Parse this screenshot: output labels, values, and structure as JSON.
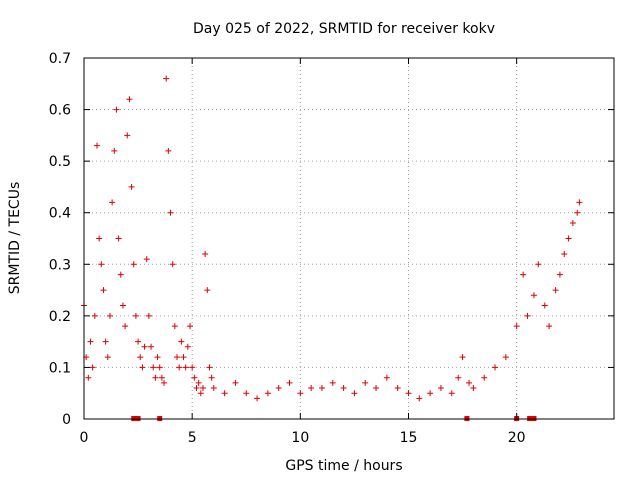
{
  "chart_data": {
    "type": "scatter",
    "title": "Day 025 of 2022, SRMTID for receiver kokv",
    "xlabel": "GPS time / hours",
    "ylabel": "SRMTID / TECUs",
    "xlim": [
      0,
      24.5
    ],
    "ylim": [
      0,
      0.7
    ],
    "xticks": [
      0,
      5,
      10,
      15,
      20
    ],
    "xtick_labels": [
      "0",
      "5",
      "10",
      "15",
      "20"
    ],
    "yticks": [
      0,
      0.1,
      0.2,
      0.3,
      0.4,
      0.5,
      0.6,
      0.7
    ],
    "ytick_labels": [
      "0",
      "0.1",
      "0.2",
      "0.3",
      "0.4",
      "0.5",
      "0.6",
      "0.7"
    ],
    "grid": true,
    "marker": "plus",
    "color": "#e00000",
    "series": [
      {
        "name": "SRMTID",
        "x": [
          0.0,
          0.1,
          0.2,
          0.3,
          0.4,
          0.5,
          0.6,
          0.7,
          0.8,
          0.9,
          1.0,
          1.1,
          1.2,
          1.3,
          1.4,
          1.5,
          1.6,
          1.7,
          1.8,
          1.9,
          2.0,
          2.1,
          2.2,
          2.3,
          2.4,
          2.5,
          2.6,
          2.7,
          2.8,
          2.9,
          3.0,
          3.1,
          3.2,
          3.3,
          3.4,
          3.5,
          3.6,
          3.7,
          3.8,
          3.9,
          4.0,
          4.1,
          4.2,
          4.3,
          4.4,
          4.5,
          4.6,
          4.7,
          4.8,
          4.9,
          5.0,
          5.1,
          5.2,
          5.3,
          5.4,
          5.5,
          5.6,
          5.7,
          5.8,
          5.9,
          6.0,
          6.5,
          7.0,
          7.5,
          8.0,
          8.5,
          9.0,
          9.5,
          10.0,
          10.5,
          11.0,
          11.5,
          12.0,
          12.5,
          13.0,
          13.5,
          14.0,
          14.5,
          15.0,
          15.5,
          16.0,
          16.5,
          17.0,
          17.3,
          17.5,
          17.8,
          18.0,
          18.5,
          19.0,
          19.5,
          20.0,
          20.3,
          20.5,
          20.8,
          21.0,
          21.3,
          21.5,
          21.8,
          22.0,
          22.2,
          22.4,
          22.6,
          22.8,
          22.9
        ],
        "y": [
          0.22,
          0.12,
          0.08,
          0.15,
          0.1,
          0.2,
          0.53,
          0.35,
          0.3,
          0.25,
          0.15,
          0.12,
          0.2,
          0.42,
          0.52,
          0.6,
          0.35,
          0.28,
          0.22,
          0.18,
          0.55,
          0.62,
          0.45,
          0.3,
          0.2,
          0.15,
          0.12,
          0.1,
          0.14,
          0.31,
          0.2,
          0.14,
          0.1,
          0.08,
          0.12,
          0.1,
          0.08,
          0.07,
          0.66,
          0.52,
          0.4,
          0.3,
          0.18,
          0.12,
          0.1,
          0.15,
          0.12,
          0.1,
          0.14,
          0.18,
          0.1,
          0.08,
          0.06,
          0.07,
          0.05,
          0.06,
          0.32,
          0.25,
          0.1,
          0.08,
          0.06,
          0.05,
          0.07,
          0.05,
          0.04,
          0.05,
          0.06,
          0.07,
          0.05,
          0.06,
          0.06,
          0.07,
          0.06,
          0.05,
          0.07,
          0.06,
          0.08,
          0.06,
          0.05,
          0.04,
          0.05,
          0.06,
          0.05,
          0.08,
          0.12,
          0.07,
          0.06,
          0.08,
          0.1,
          0.12,
          0.18,
          0.28,
          0.2,
          0.24,
          0.3,
          0.22,
          0.18,
          0.25,
          0.28,
          0.32,
          0.35,
          0.38,
          0.4,
          0.42
        ]
      }
    ],
    "data_gaps_x": [
      2.3,
      2.5,
      3.5,
      17.7,
      20.0,
      20.6,
      20.8
    ]
  }
}
